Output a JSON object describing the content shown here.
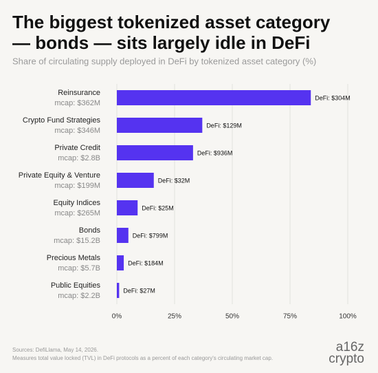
{
  "chart_data": {
    "type": "hbar",
    "title": [
      "The biggest tokenized asset category",
      "— bonds — sits largely idle in DeFi"
    ],
    "subtitle": "Share of circulating supply deployed in DeFi by tokenized asset category (%)",
    "categories": [
      "Reinsurance",
      "Crypto Fund Strategies",
      "Private Credit",
      "Private Equity & Venture",
      "Equity Indices",
      "Bonds",
      "Precious Metals",
      "Public Equities"
    ],
    "mcap_labels": [
      "mcap: $362M",
      "mcap: $346M",
      "mcap: $2.8B",
      "mcap: $199M",
      "mcap: $265M",
      "mcap: $15.2B",
      "mcap: $5.7B",
      "mcap: $2.2B"
    ],
    "values": [
      84,
      37,
      33,
      16,
      9,
      5,
      3,
      1
    ],
    "defi_labels": [
      "DeFi: $304M",
      "DeFi: $129M",
      "DeFi: $936M",
      "DeFi: $32M",
      "DeFi: $25M",
      "DeFi: $799M",
      "DeFi: $184M",
      "DeFi: $27M"
    ],
    "color": "#5533f0",
    "xlim": [
      0,
      100
    ],
    "xticks": [
      {
        "value": 0,
        "label": "0%"
      },
      {
        "value": 25,
        "label": "25%"
      },
      {
        "value": 50,
        "label": "50%"
      },
      {
        "value": 75,
        "label": "75%"
      },
      {
        "value": 100,
        "label": "100%"
      }
    ],
    "grid": true,
    "source": "Sources: DefiLlama, May 14, 2026.",
    "note": "Measures total value locked (TVL) in DeFi protocols as a percent of each category's circulating market cap.",
    "logo": [
      "a16z",
      "crypto"
    ]
  }
}
